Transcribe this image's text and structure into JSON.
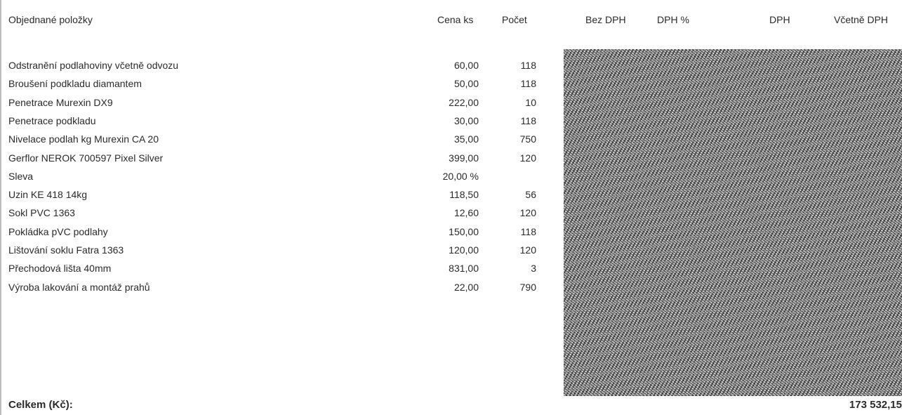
{
  "header": {
    "items": "Objednané položky",
    "unit_price": "Cena ks",
    "qty": "Počet",
    "no_vat": "Bez DPH",
    "vat_pct": "DPH %",
    "vat": "DPH",
    "with_vat": "Včetně DPH"
  },
  "rows": [
    {
      "name": "Odstranění podlahoviny včetně odvozu",
      "price": "60,00",
      "qty": "118"
    },
    {
      "name": "Broušení podkladu diamantem",
      "price": "50,00",
      "qty": "118"
    },
    {
      "name": "Penetrace Murexin  DX9",
      "price": "222,00",
      "qty": "10"
    },
    {
      "name": "Penetrace podkladu",
      "price": "30,00",
      "qty": "118"
    },
    {
      "name": "Nivelace podlah kg Murexin CA 20",
      "price": "35,00",
      "qty": "750"
    },
    {
      "name": "Gerflor NEROK 700597 Pixel Silver",
      "price": "399,00",
      "qty": "120"
    },
    {
      "name": "Sleva",
      "price": "20,00 %",
      "qty": ""
    },
    {
      "name": "Uzin KE 418 14kg",
      "price": "118,50",
      "qty": "56"
    },
    {
      "name": "Sokl PVC 1363",
      "price": "12,60",
      "qty": "120"
    },
    {
      "name": "Pokládka pVC podlahy",
      "price": "150,00",
      "qty": "118"
    },
    {
      "name": "Lištování soklu Fatra 1363",
      "price": "120,00",
      "qty": "120"
    },
    {
      "name": "Přechodová lišta 40mm",
      "price": "831,00",
      "qty": "3"
    },
    {
      "name": "Výroba lakování a montáž prahů",
      "price": "22,00",
      "qty": "790"
    }
  ],
  "total": {
    "label": "Celkem (Kč):",
    "value": "173 532,15"
  }
}
